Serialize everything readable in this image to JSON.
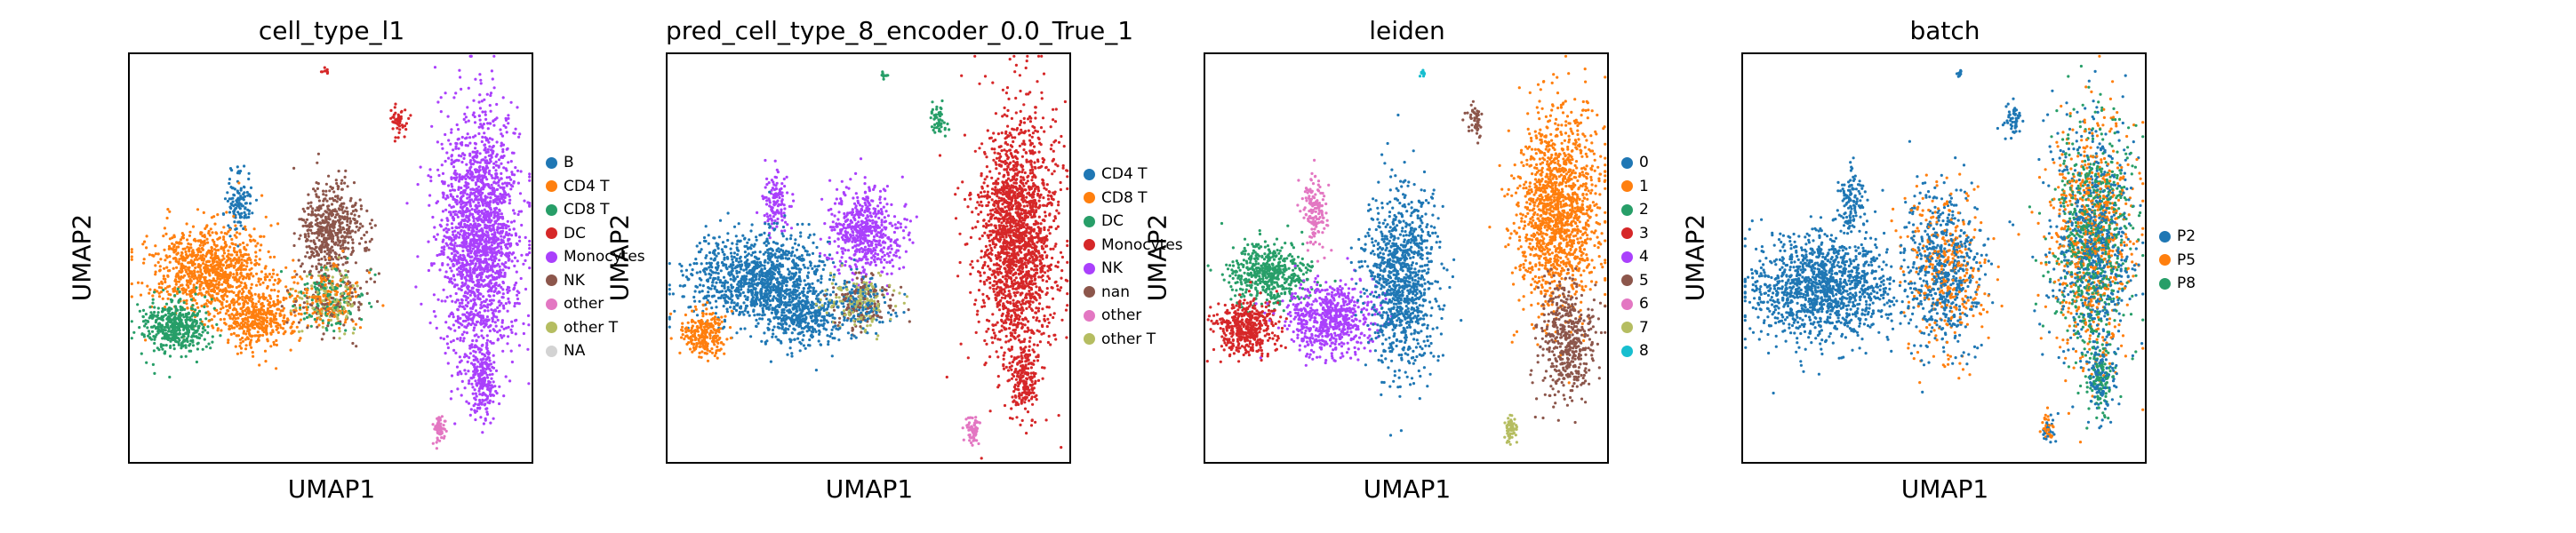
{
  "chart_data": [
    {
      "type": "scatter",
      "title": "cell_type_l1",
      "xlabel": "UMAP1",
      "ylabel": "UMAP2",
      "legend_placement": "right",
      "legend": [
        {
          "label": "B",
          "color": "#1f77b4"
        },
        {
          "label": "CD4 T",
          "color": "#ff7f0e"
        },
        {
          "label": "CD8 T",
          "color": "#279e68"
        },
        {
          "label": "DC",
          "color": "#d62728"
        },
        {
          "label": "Monocytes",
          "color": "#aa40fc"
        },
        {
          "label": "NK",
          "color": "#8c564b"
        },
        {
          "label": "other",
          "color": "#e377c2"
        },
        {
          "label": "other T",
          "color": "#b5bd61"
        },
        {
          "label": "NA",
          "color": "#d3d3d3"
        }
      ],
      "clusters": [
        {
          "cx": 0.49,
          "cy": 0.96,
          "rx": 0.008,
          "ry": 0.01,
          "colors": [
            "#d62728"
          ],
          "n": 10
        },
        {
          "cx": 0.67,
          "cy": 0.84,
          "rx": 0.02,
          "ry": 0.035,
          "colors": [
            "#d62728"
          ],
          "n": 50
        },
        {
          "cx": 0.27,
          "cy": 0.64,
          "rx": 0.03,
          "ry": 0.07,
          "colors": [
            "#1f77b4"
          ],
          "n": 120
        },
        {
          "cx": 0.2,
          "cy": 0.47,
          "rx": 0.13,
          "ry": 0.1,
          "colors": [
            "#ff7f0e"
          ],
          "n": 900
        },
        {
          "cx": 0.11,
          "cy": 0.33,
          "rx": 0.07,
          "ry": 0.06,
          "colors": [
            "#279e68"
          ],
          "n": 450
        },
        {
          "cx": 0.32,
          "cy": 0.36,
          "rx": 0.09,
          "ry": 0.07,
          "colors": [
            "#ff7f0e"
          ],
          "n": 450
        },
        {
          "cx": 0.5,
          "cy": 0.57,
          "rx": 0.07,
          "ry": 0.1,
          "colors": [
            "#8c564b"
          ],
          "n": 500
        },
        {
          "cx": 0.5,
          "cy": 0.4,
          "rx": 0.08,
          "ry": 0.07,
          "colors": [
            "#8c564b",
            "#279e68",
            "#ff7f0e",
            "#b5bd61"
          ],
          "n": 500
        },
        {
          "cx": 0.87,
          "cy": 0.55,
          "rx": 0.09,
          "ry": 0.27,
          "colors": [
            "#aa40fc"
          ],
          "n": 1900
        },
        {
          "cx": 0.88,
          "cy": 0.2,
          "rx": 0.03,
          "ry": 0.08,
          "colors": [
            "#aa40fc"
          ],
          "n": 200
        },
        {
          "cx": 0.77,
          "cy": 0.08,
          "rx": 0.015,
          "ry": 0.03,
          "colors": [
            "#e377c2"
          ],
          "n": 60
        }
      ]
    },
    {
      "type": "scatter",
      "title": "pred_cell_type_8_encoder_0.0_True_1",
      "xlabel": "UMAP1",
      "ylabel": "UMAP2",
      "legend_placement": "right",
      "legend": [
        {
          "label": "CD4 T",
          "color": "#1f77b4"
        },
        {
          "label": "CD8 T",
          "color": "#ff7f0e"
        },
        {
          "label": "DC",
          "color": "#279e68"
        },
        {
          "label": "Monocytes",
          "color": "#d62728"
        },
        {
          "label": "NK",
          "color": "#aa40fc"
        },
        {
          "label": "nan",
          "color": "#8c564b"
        },
        {
          "label": "other",
          "color": "#e377c2"
        },
        {
          "label": "other T",
          "color": "#b5bd61"
        }
      ],
      "clusters": [
        {
          "cx": 0.54,
          "cy": 0.95,
          "rx": 0.008,
          "ry": 0.01,
          "colors": [
            "#279e68"
          ],
          "n": 10
        },
        {
          "cx": 0.67,
          "cy": 0.84,
          "rx": 0.02,
          "ry": 0.035,
          "colors": [
            "#279e68"
          ],
          "n": 50
        },
        {
          "cx": 0.27,
          "cy": 0.64,
          "rx": 0.03,
          "ry": 0.07,
          "colors": [
            "#aa40fc"
          ],
          "n": 120
        },
        {
          "cx": 0.22,
          "cy": 0.45,
          "rx": 0.15,
          "ry": 0.1,
          "colors": [
            "#1f77b4"
          ],
          "n": 1100
        },
        {
          "cx": 0.09,
          "cy": 0.31,
          "rx": 0.05,
          "ry": 0.05,
          "colors": [
            "#ff7f0e"
          ],
          "n": 250
        },
        {
          "cx": 0.33,
          "cy": 0.36,
          "rx": 0.09,
          "ry": 0.07,
          "colors": [
            "#1f77b4"
          ],
          "n": 400
        },
        {
          "cx": 0.49,
          "cy": 0.56,
          "rx": 0.08,
          "ry": 0.1,
          "colors": [
            "#aa40fc"
          ],
          "n": 550
        },
        {
          "cx": 0.48,
          "cy": 0.39,
          "rx": 0.07,
          "ry": 0.06,
          "colors": [
            "#1f77b4",
            "#b5bd61",
            "#8c564b"
          ],
          "n": 450
        },
        {
          "cx": 0.87,
          "cy": 0.55,
          "rx": 0.09,
          "ry": 0.27,
          "colors": [
            "#d62728"
          ],
          "n": 1900
        },
        {
          "cx": 0.89,
          "cy": 0.2,
          "rx": 0.03,
          "ry": 0.08,
          "colors": [
            "#d62728"
          ],
          "n": 200
        },
        {
          "cx": 0.76,
          "cy": 0.08,
          "rx": 0.015,
          "ry": 0.03,
          "colors": [
            "#e377c2"
          ],
          "n": 60
        }
      ]
    },
    {
      "type": "scatter",
      "title": "leiden",
      "xlabel": "UMAP1",
      "ylabel": "UMAP2",
      "legend_placement": "right",
      "legend": [
        {
          "label": "0",
          "color": "#1f77b4"
        },
        {
          "label": "1",
          "color": "#ff7f0e"
        },
        {
          "label": "2",
          "color": "#279e68"
        },
        {
          "label": "3",
          "color": "#d62728"
        },
        {
          "label": "4",
          "color": "#aa40fc"
        },
        {
          "label": "5",
          "color": "#8c564b"
        },
        {
          "label": "6",
          "color": "#e377c2"
        },
        {
          "label": "7",
          "color": "#b5bd61"
        },
        {
          "label": "8",
          "color": "#17becf"
        }
      ],
      "clusters": [
        {
          "cx": 0.54,
          "cy": 0.95,
          "rx": 0.008,
          "ry": 0.01,
          "colors": [
            "#17becf"
          ],
          "n": 10
        },
        {
          "cx": 0.67,
          "cy": 0.84,
          "rx": 0.02,
          "ry": 0.035,
          "colors": [
            "#8c564b"
          ],
          "n": 50
        },
        {
          "cx": 0.27,
          "cy": 0.62,
          "rx": 0.03,
          "ry": 0.08,
          "colors": [
            "#e377c2"
          ],
          "n": 150
        },
        {
          "cx": 0.16,
          "cy": 0.46,
          "rx": 0.09,
          "ry": 0.07,
          "colors": [
            "#279e68"
          ],
          "n": 500
        },
        {
          "cx": 0.1,
          "cy": 0.33,
          "rx": 0.07,
          "ry": 0.06,
          "colors": [
            "#d62728"
          ],
          "n": 450
        },
        {
          "cx": 0.31,
          "cy": 0.35,
          "rx": 0.1,
          "ry": 0.08,
          "colors": [
            "#aa40fc"
          ],
          "n": 650
        },
        {
          "cx": 0.49,
          "cy": 0.45,
          "rx": 0.08,
          "ry": 0.2,
          "colors": [
            "#1f77b4"
          ],
          "n": 1000
        },
        {
          "cx": 0.88,
          "cy": 0.62,
          "rx": 0.09,
          "ry": 0.22,
          "colors": [
            "#ff7f0e"
          ],
          "n": 1400
        },
        {
          "cx": 0.9,
          "cy": 0.3,
          "rx": 0.06,
          "ry": 0.13,
          "colors": [
            "#8c564b"
          ],
          "n": 450
        },
        {
          "cx": 0.76,
          "cy": 0.08,
          "rx": 0.015,
          "ry": 0.03,
          "colors": [
            "#b5bd61"
          ],
          "n": 60
        }
      ]
    },
    {
      "type": "scatter",
      "title": "batch",
      "xlabel": "UMAP1",
      "ylabel": "UMAP2",
      "legend_placement": "right",
      "legend": [
        {
          "label": "P2",
          "color": "#1f77b4"
        },
        {
          "label": "P5",
          "color": "#ff7f0e"
        },
        {
          "label": "P8",
          "color": "#279e68"
        }
      ],
      "clusters": [
        {
          "cx": 0.54,
          "cy": 0.95,
          "rx": 0.008,
          "ry": 0.01,
          "colors": [
            "#1f77b4"
          ],
          "n": 10
        },
        {
          "cx": 0.67,
          "cy": 0.84,
          "rx": 0.02,
          "ry": 0.035,
          "colors": [
            "#1f77b4"
          ],
          "n": 50
        },
        {
          "cx": 0.27,
          "cy": 0.64,
          "rx": 0.03,
          "ry": 0.07,
          "colors": [
            "#1f77b4"
          ],
          "n": 120
        },
        {
          "cx": 0.2,
          "cy": 0.43,
          "rx": 0.16,
          "ry": 0.12,
          "colors": [
            "#1f77b4"
          ],
          "n": 1300
        },
        {
          "cx": 0.5,
          "cy": 0.47,
          "rx": 0.09,
          "ry": 0.18,
          "colors": [
            "#1f77b4",
            "#1f77b4",
            "#ff7f0e"
          ],
          "n": 900
        },
        {
          "cx": 0.87,
          "cy": 0.55,
          "rx": 0.09,
          "ry": 0.27,
          "colors": [
            "#1f77b4",
            "#279e68",
            "#ff7f0e"
          ],
          "n": 1900
        },
        {
          "cx": 0.89,
          "cy": 0.2,
          "rx": 0.03,
          "ry": 0.08,
          "colors": [
            "#1f77b4",
            "#279e68"
          ],
          "n": 200
        },
        {
          "cx": 0.76,
          "cy": 0.08,
          "rx": 0.015,
          "ry": 0.03,
          "colors": [
            "#ff7f0e",
            "#1f77b4"
          ],
          "n": 60
        }
      ]
    }
  ]
}
